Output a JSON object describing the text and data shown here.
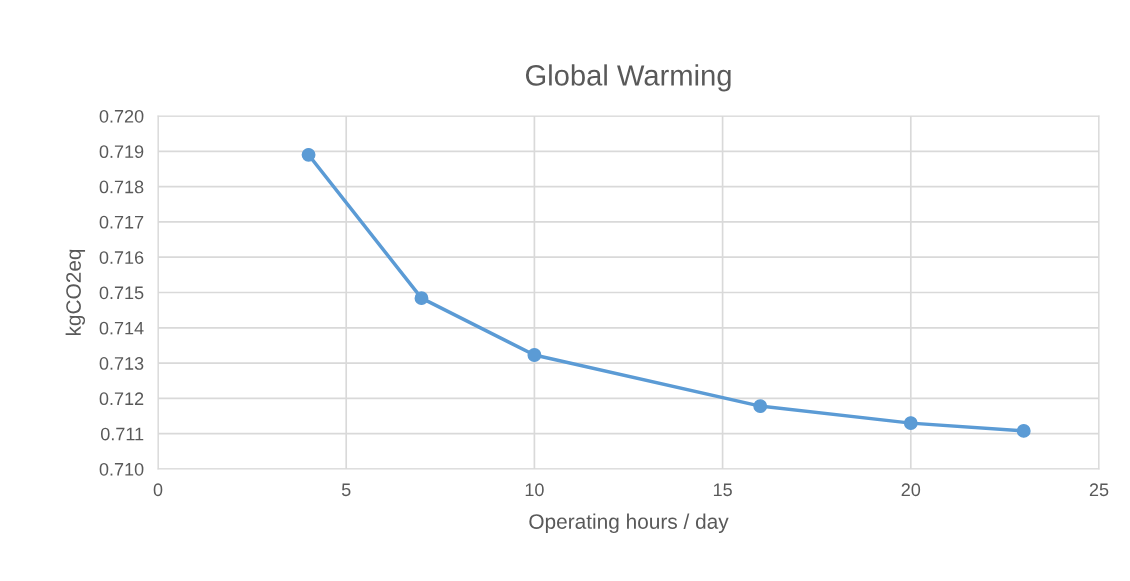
{
  "chart_data": {
    "type": "line",
    "title": "Global Warming",
    "xlabel": "Operating hours / day",
    "ylabel": "kgCO2eq",
    "x": [
      4,
      7,
      10,
      16,
      20,
      23
    ],
    "series": [
      {
        "color": "#5b9bd5",
        "values": [
          0.7189,
          0.71484,
          0.71323,
          0.71178,
          0.7113,
          0.71108
        ]
      }
    ],
    "xlim": [
      0,
      25
    ],
    "xticks": [
      0,
      5,
      10,
      15,
      20,
      25
    ],
    "ylim": [
      0.71,
      0.72
    ],
    "yticks": [
      {
        "value": 0.71,
        "label": "0.710"
      },
      {
        "value": 0.711,
        "label": "0.711"
      },
      {
        "value": 0.712,
        "label": "0.712"
      },
      {
        "value": 0.713,
        "label": "0.713"
      },
      {
        "value": 0.714,
        "label": "0.714"
      },
      {
        "value": 0.715,
        "label": "0.715"
      },
      {
        "value": 0.716,
        "label": "0.716"
      },
      {
        "value": 0.717,
        "label": "0.717"
      },
      {
        "value": 0.718,
        "label": "0.718"
      },
      {
        "value": 0.719,
        "label": "0.719"
      },
      {
        "value": 0.72,
        "label": "0.720"
      }
    ],
    "grid": true,
    "marker": "circle",
    "line_style": "solid",
    "legend": false
  }
}
